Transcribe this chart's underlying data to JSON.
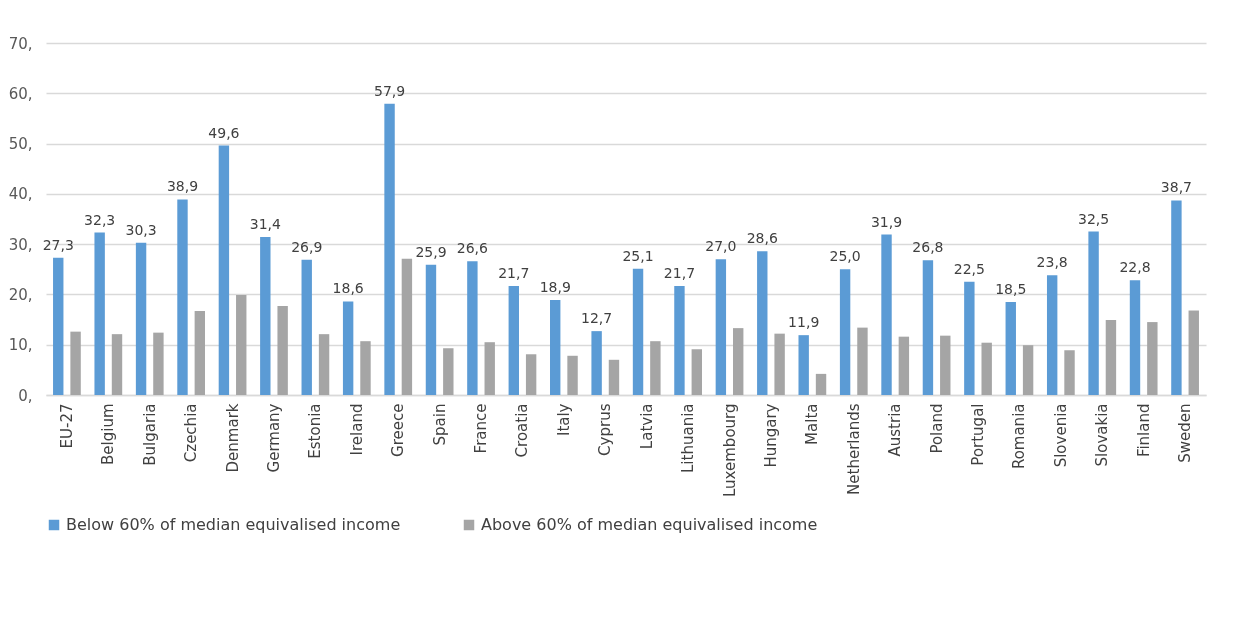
{
  "chart_data": {
    "type": "bar",
    "categories": [
      "EU-27",
      "Belgium",
      "Bulgaria",
      "Czechia",
      "Denmark",
      "Germany",
      "Estonia",
      "Ireland",
      "Greece",
      "Spain",
      "France",
      "Croatia",
      "Italy",
      "Cyprus",
      "Latvia",
      "Lithuania",
      "Luxembourg",
      "Hungary",
      "Malta",
      "Netherlands",
      "Austria",
      "Poland",
      "Portugal",
      "Romania",
      "Slovenia",
      "Slovakia",
      "Finland",
      "Sweden"
    ],
    "series": [
      {
        "name": "Below 60% of median equivalised income",
        "color": "#5b9bd5",
        "values": [
          27.3,
          32.3,
          30.3,
          38.9,
          49.6,
          31.4,
          26.9,
          18.6,
          57.9,
          25.9,
          26.6,
          21.7,
          18.9,
          12.7,
          25.1,
          21.7,
          27.0,
          28.6,
          11.9,
          25.0,
          31.9,
          26.8,
          22.5,
          18.5,
          23.8,
          32.5,
          22.8,
          38.7
        ],
        "value_labels": [
          "27,3",
          "32,3",
          "30,3",
          "38,9",
          "49,6",
          "31,4",
          "26,9",
          "18,6",
          "57,9",
          "25,9",
          "26,6",
          "21,7",
          "18,9",
          "12,7",
          "25,1",
          "21,7",
          "27,0",
          "28,6",
          "11,9",
          "25,0",
          "31,9",
          "26,8",
          "22,5",
          "18,5",
          "23,8",
          "32,5",
          "22,8",
          "38,7"
        ]
      },
      {
        "name": "Above 60% of median equivalised income",
        "color": "#a5a5a5",
        "values": [
          12.6,
          12.1,
          12.4,
          16.7,
          19.9,
          17.7,
          12.1,
          10.7,
          27.1,
          9.3,
          10.5,
          8.1,
          7.8,
          7.0,
          10.7,
          9.1,
          13.3,
          12.2,
          4.2,
          13.4,
          11.6,
          11.8,
          10.4,
          9.9,
          8.9,
          14.9,
          14.5,
          16.8
        ]
      }
    ],
    "ylim": [
      0,
      70
    ],
    "yticks": [
      {
        "value": 0,
        "label": "0,"
      },
      {
        "value": 10,
        "label": "10,"
      },
      {
        "value": 20,
        "label": "20,"
      },
      {
        "value": 30,
        "label": "30,"
      },
      {
        "value": 40,
        "label": "40,"
      },
      {
        "value": 50,
        "label": "50,"
      },
      {
        "value": 60,
        "label": "60,"
      },
      {
        "value": 70,
        "label": "70,"
      }
    ],
    "grid": "y",
    "legend": "bottom"
  }
}
